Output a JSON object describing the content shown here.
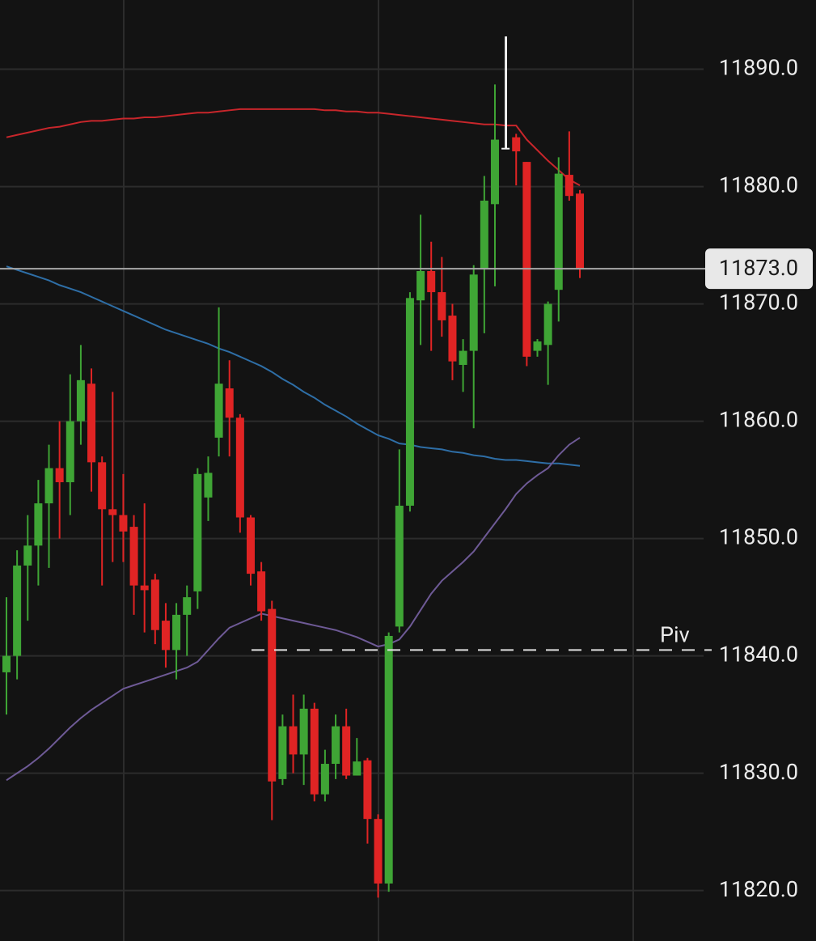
{
  "chart_data": {
    "type": "candlestick",
    "ylim": [
      11815.7,
      11895.9
    ],
    "yticks": [
      {
        "value": 11820,
        "label": "11820.0"
      },
      {
        "value": 11830,
        "label": "11830.0"
      },
      {
        "value": 11840,
        "label": "11840.0"
      },
      {
        "value": 11850,
        "label": "11850.0"
      },
      {
        "value": 11860,
        "label": "11860.0"
      },
      {
        "value": 11870,
        "label": "11870.0"
      },
      {
        "value": 11880,
        "label": "11880.0"
      },
      {
        "value": 11890,
        "label": "11890.0"
      }
    ],
    "grid": true,
    "up_color": "#3fa535",
    "down_color": "#e02424",
    "flat_color": "#f2f2f2",
    "open": [
      11838.6,
      11840,
      11847.7,
      11849.4,
      11853,
      11856,
      11854.8,
      11860,
      11863.2,
      11856.5,
      11852.5,
      11852,
      11851,
      11846,
      11846.5,
      11843,
      11840.5,
      11843.5,
      11845.5,
      11853.5,
      11858.6,
      11862.8,
      11860.3,
      11851.8,
      11847.2,
      11844,
      11829.5,
      11834,
      11831.6,
      11835.5,
      11828.2,
      11830.8,
      11834,
      11829.8,
      11831.1,
      11826.1,
      11820.6,
      11842.5,
      11852.8,
      11870.3,
      11872.8,
      11871,
      11869,
      11864.8,
      11866,
      11873,
      11878.5,
      11883.3,
      11884.2,
      11882.1,
      11866,
      11866.5,
      11871.2,
      11881,
      11879.4
    ],
    "high": [
      11845,
      11849,
      11852,
      11855,
      11858,
      11860,
      11864,
      11866.5,
      11864.5,
      11857,
      11862.5,
      11855.5,
      11852,
      11853,
      11847,
      11844.5,
      11844.5,
      11846,
      11856,
      11857,
      11869.7,
      11865.2,
      11860.6,
      11852,
      11848,
      11844.7,
      11835,
      11836.7,
      11836.7,
      11836,
      11832,
      11835,
      11835.5,
      11833,
      11831.3,
      11826.5,
      11842,
      11857.6,
      11871,
      11877.6,
      11875.3,
      11874,
      11870,
      11867,
      11873.3,
      11880.9,
      11888.7,
      11892.8,
      11884.5,
      11882.1,
      11867,
      11870.2,
      11882.5,
      11884.7,
      11879.7
    ],
    "low": [
      11835,
      11838,
      11843,
      11846,
      11847.5,
      11850,
      11852,
      11858,
      11854,
      11846,
      11848,
      11848,
      11843.5,
      11842,
      11841,
      11839,
      11838,
      11840,
      11844,
      11851.5,
      11857,
      11857,
      11850.5,
      11846,
      11843,
      11826,
      11829,
      11830,
      11829,
      11827.6,
      11827.6,
      11829.5,
      11829.5,
      11829.8,
      11824,
      11819.4,
      11819.9,
      11842,
      11852.3,
      11866.5,
      11866,
      11867.2,
      11863.5,
      11862.5,
      11859.4,
      11867.5,
      11871.5,
      11883.2,
      11880.1,
      11864.7,
      11865.5,
      11863.1,
      11868.5,
      11878.8,
      11872.2
    ],
    "close": [
      11840,
      11847.7,
      11849.4,
      11853,
      11856,
      11854.8,
      11860,
      11863.5,
      11856.5,
      11852.5,
      11852,
      11850.6,
      11846,
      11845.6,
      11842.2,
      11840.5,
      11843.5,
      11845,
      11855.5,
      11855.6,
      11863.2,
      11860.3,
      11851.8,
      11847,
      11843.8,
      11829.3,
      11834,
      11831.6,
      11835.5,
      11828.2,
      11830.8,
      11834,
      11829.8,
      11831,
      11826.1,
      11820.6,
      11841.7,
      11852.8,
      11870.5,
      11872.8,
      11871,
      11868.6,
      11865.1,
      11866,
      11872.5,
      11878.8,
      11884,
      11883.3,
      11883,
      11865.5,
      11866.8,
      11870,
      11881.1,
      11879.2,
      11873
    ],
    "series": [
      {
        "color": "#c8262b",
        "values": [
          11884.2,
          11884.4,
          11884.6,
          11884.8,
          11885.0,
          11885.1,
          11885.3,
          11885.5,
          11885.6,
          11885.6,
          11885.7,
          11885.8,
          11885.8,
          11885.9,
          11885.9,
          11886.0,
          11886.1,
          11886.2,
          11886.3,
          11886.3,
          11886.4,
          11886.5,
          11886.6,
          11886.6,
          11886.6,
          11886.6,
          11886.6,
          11886.6,
          11886.6,
          11886.6,
          11886.5,
          11886.5,
          11886.4,
          11886.4,
          11886.3,
          11886.3,
          11886.2,
          11886.1,
          11886.0,
          11885.9,
          11885.8,
          11885.7,
          11885.6,
          11885.5,
          11885.4,
          11885.3,
          11885.3,
          11885.2,
          11885.2,
          11884.0,
          11883.1,
          11882.2,
          11881.4,
          11880.6,
          11880.1
        ]
      },
      {
        "color": "#2e6ea6",
        "values": [
          11873.2,
          11872.9,
          11872.6,
          11872.3,
          11872.0,
          11871.6,
          11871.3,
          11871.0,
          11870.6,
          11870.2,
          11869.8,
          11869.4,
          11869.0,
          11868.6,
          11868.2,
          11867.8,
          11867.5,
          11867.2,
          11866.9,
          11866.6,
          11866.2,
          11865.9,
          11865.5,
          11865.1,
          11864.7,
          11864.2,
          11863.6,
          11863.1,
          11862.5,
          11862.0,
          11861.4,
          11860.9,
          11860.4,
          11859.8,
          11859.3,
          11858.8,
          11858.5,
          11858.1,
          11858.0,
          11857.8,
          11857.7,
          11857.6,
          11857.4,
          11857.3,
          11857.1,
          11857.0,
          11856.8,
          11856.7,
          11856.7,
          11856.6,
          11856.5,
          11856.4,
          11856.4,
          11856.3,
          11856.2
        ]
      },
      {
        "color": "#6e5a96",
        "values": [
          11829.4,
          11830.0,
          11830.6,
          11831.3,
          11832.1,
          11833.0,
          11833.9,
          11834.7,
          11835.4,
          11836.0,
          11836.6,
          11837.2,
          11837.5,
          11837.8,
          11838.1,
          11838.4,
          11838.7,
          11839.0,
          11839.5,
          11840.5,
          11841.5,
          11842.4,
          11842.8,
          11843.2,
          11843.6,
          11843.4,
          11843.2,
          11843.0,
          11842.8,
          11842.6,
          11842.4,
          11842.2,
          11841.9,
          11841.6,
          11841.2,
          11840.8,
          11841.0,
          11841.4,
          11842.5,
          11843.9,
          11845.3,
          11846.4,
          11847.2,
          11848.0,
          11848.9,
          11850.1,
          11851.3,
          11852.5,
          11853.8,
          11854.7,
          11855.4,
          11856.0,
          11857.1,
          11858.0,
          11858.6
        ]
      }
    ],
    "last_price": {
      "value": 11873,
      "label": "11873.0"
    },
    "pivot": {
      "value": 11840.5,
      "label": "Piv"
    }
  }
}
